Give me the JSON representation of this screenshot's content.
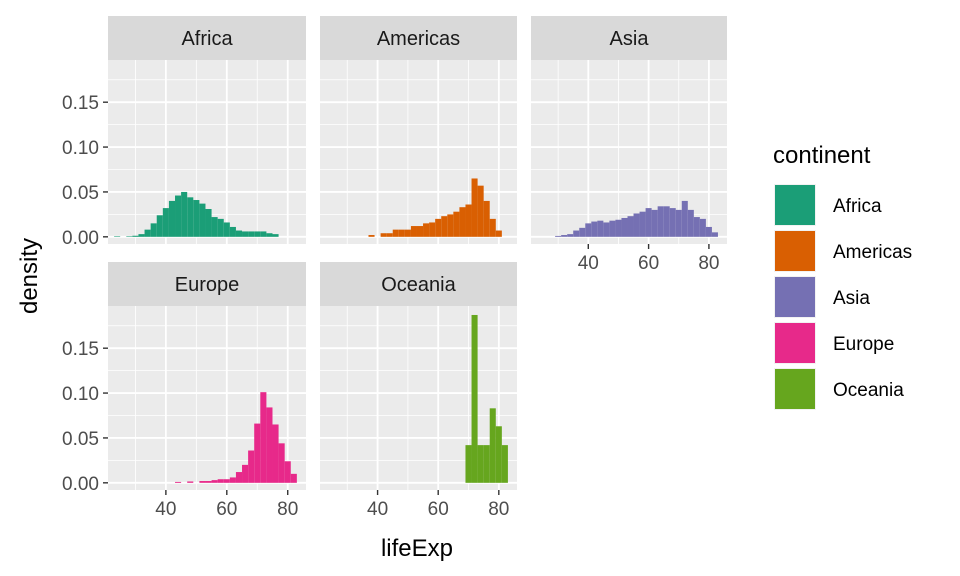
{
  "chart_data": {
    "type": "histogram-facet",
    "xlabel": "lifeExp",
    "ylabel": "density",
    "xlim": [
      21,
      86
    ],
    "ylim": [
      -0.008,
      0.197
    ],
    "x_ticks": [
      40,
      60,
      80
    ],
    "y_ticks": [
      0.0,
      0.05,
      0.1,
      0.15
    ],
    "y_tick_labels": [
      "0.00",
      "0.05",
      "0.10",
      "0.15"
    ],
    "bin_width": 2,
    "legend": {
      "title": "continent",
      "position": "right",
      "entries": [
        {
          "label": "Africa",
          "color": "#1B9E77"
        },
        {
          "label": "Americas",
          "color": "#D95F02"
        },
        {
          "label": "Asia",
          "color": "#7570B3"
        },
        {
          "label": "Europe",
          "color": "#E7298A"
        },
        {
          "label": "Oceania",
          "color": "#66A61E"
        }
      ]
    },
    "panels": [
      {
        "title": "Africa",
        "color": "#1B9E77",
        "bars": [
          {
            "x0": 23,
            "x1": 25,
            "y": 0.0006
          },
          {
            "x0": 27,
            "x1": 29,
            "y": 0.0006
          },
          {
            "x0": 29,
            "x1": 31,
            "y": 0.0012
          },
          {
            "x0": 31,
            "x1": 33,
            "y": 0.003
          },
          {
            "x0": 33,
            "x1": 35,
            "y": 0.008
          },
          {
            "x0": 35,
            "x1": 37,
            "y": 0.015
          },
          {
            "x0": 37,
            "x1": 39,
            "y": 0.024
          },
          {
            "x0": 39,
            "x1": 41,
            "y": 0.032
          },
          {
            "x0": 41,
            "x1": 43,
            "y": 0.04
          },
          {
            "x0": 43,
            "x1": 45,
            "y": 0.046
          },
          {
            "x0": 45,
            "x1": 47,
            "y": 0.05
          },
          {
            "x0": 47,
            "x1": 49,
            "y": 0.044
          },
          {
            "x0": 49,
            "x1": 51,
            "y": 0.041
          },
          {
            "x0": 51,
            "x1": 53,
            "y": 0.037
          },
          {
            "x0": 53,
            "x1": 55,
            "y": 0.031
          },
          {
            "x0": 55,
            "x1": 57,
            "y": 0.022
          },
          {
            "x0": 57,
            "x1": 59,
            "y": 0.02
          },
          {
            "x0": 59,
            "x1": 61,
            "y": 0.016
          },
          {
            "x0": 61,
            "x1": 63,
            "y": 0.011
          },
          {
            "x0": 63,
            "x1": 65,
            "y": 0.007
          },
          {
            "x0": 65,
            "x1": 67,
            "y": 0.006
          },
          {
            "x0": 67,
            "x1": 69,
            "y": 0.006
          },
          {
            "x0": 69,
            "x1": 71,
            "y": 0.006
          },
          {
            "x0": 71,
            "x1": 73,
            "y": 0.006
          },
          {
            "x0": 73,
            "x1": 75,
            "y": 0.004
          },
          {
            "x0": 75,
            "x1": 77,
            "y": 0.003
          }
        ]
      },
      {
        "title": "Americas",
        "color": "#D95F02",
        "bars": [
          {
            "x0": 37,
            "x1": 39,
            "y": 0.002
          },
          {
            "x0": 41,
            "x1": 43,
            "y": 0.004
          },
          {
            "x0": 43,
            "x1": 45,
            "y": 0.004
          },
          {
            "x0": 45,
            "x1": 47,
            "y": 0.008
          },
          {
            "x0": 47,
            "x1": 49,
            "y": 0.008
          },
          {
            "x0": 49,
            "x1": 51,
            "y": 0.008
          },
          {
            "x0": 51,
            "x1": 53,
            "y": 0.012
          },
          {
            "x0": 53,
            "x1": 55,
            "y": 0.012
          },
          {
            "x0": 55,
            "x1": 57,
            "y": 0.015
          },
          {
            "x0": 57,
            "x1": 59,
            "y": 0.016
          },
          {
            "x0": 59,
            "x1": 61,
            "y": 0.02
          },
          {
            "x0": 61,
            "x1": 63,
            "y": 0.023
          },
          {
            "x0": 63,
            "x1": 65,
            "y": 0.025
          },
          {
            "x0": 65,
            "x1": 67,
            "y": 0.028
          },
          {
            "x0": 67,
            "x1": 69,
            "y": 0.033
          },
          {
            "x0": 69,
            "x1": 71,
            "y": 0.036
          },
          {
            "x0": 71,
            "x1": 73,
            "y": 0.065
          },
          {
            "x0": 73,
            "x1": 75,
            "y": 0.057
          },
          {
            "x0": 75,
            "x1": 77,
            "y": 0.04
          },
          {
            "x0": 77,
            "x1": 79,
            "y": 0.02
          },
          {
            "x0": 79,
            "x1": 81,
            "y": 0.007
          }
        ]
      },
      {
        "title": "Asia",
        "color": "#7570B3",
        "bars": [
          {
            "x0": 29,
            "x1": 31,
            "y": 0.001
          },
          {
            "x0": 31,
            "x1": 33,
            "y": 0.002
          },
          {
            "x0": 33,
            "x1": 35,
            "y": 0.003
          },
          {
            "x0": 35,
            "x1": 37,
            "y": 0.007
          },
          {
            "x0": 37,
            "x1": 39,
            "y": 0.01
          },
          {
            "x0": 39,
            "x1": 41,
            "y": 0.015
          },
          {
            "x0": 41,
            "x1": 43,
            "y": 0.017
          },
          {
            "x0": 43,
            "x1": 45,
            "y": 0.018
          },
          {
            "x0": 45,
            "x1": 47,
            "y": 0.016
          },
          {
            "x0": 47,
            "x1": 49,
            "y": 0.018
          },
          {
            "x0": 49,
            "x1": 51,
            "y": 0.019
          },
          {
            "x0": 51,
            "x1": 53,
            "y": 0.021
          },
          {
            "x0": 53,
            "x1": 55,
            "y": 0.023
          },
          {
            "x0": 55,
            "x1": 57,
            "y": 0.026
          },
          {
            "x0": 57,
            "x1": 59,
            "y": 0.028
          },
          {
            "x0": 59,
            "x1": 61,
            "y": 0.032
          },
          {
            "x0": 61,
            "x1": 63,
            "y": 0.03
          },
          {
            "x0": 63,
            "x1": 65,
            "y": 0.034
          },
          {
            "x0": 65,
            "x1": 67,
            "y": 0.034
          },
          {
            "x0": 67,
            "x1": 69,
            "y": 0.032
          },
          {
            "x0": 69,
            "x1": 71,
            "y": 0.03
          },
          {
            "x0": 71,
            "x1": 73,
            "y": 0.04
          },
          {
            "x0": 73,
            "x1": 75,
            "y": 0.03
          },
          {
            "x0": 75,
            "x1": 77,
            "y": 0.022
          },
          {
            "x0": 77,
            "x1": 79,
            "y": 0.02
          },
          {
            "x0": 79,
            "x1": 81,
            "y": 0.011
          },
          {
            "x0": 81,
            "x1": 83,
            "y": 0.005
          }
        ]
      },
      {
        "title": "Europe",
        "color": "#E7298A",
        "bars": [
          {
            "x0": 43,
            "x1": 45,
            "y": 0.001
          },
          {
            "x0": 47,
            "x1": 49,
            "y": 0.0015
          },
          {
            "x0": 51,
            "x1": 53,
            "y": 0.002
          },
          {
            "x0": 53,
            "x1": 55,
            "y": 0.002
          },
          {
            "x0": 55,
            "x1": 57,
            "y": 0.003
          },
          {
            "x0": 57,
            "x1": 59,
            "y": 0.004
          },
          {
            "x0": 59,
            "x1": 61,
            "y": 0.004
          },
          {
            "x0": 61,
            "x1": 63,
            "y": 0.006
          },
          {
            "x0": 63,
            "x1": 65,
            "y": 0.012
          },
          {
            "x0": 65,
            "x1": 67,
            "y": 0.02
          },
          {
            "x0": 67,
            "x1": 69,
            "y": 0.036
          },
          {
            "x0": 69,
            "x1": 71,
            "y": 0.066
          },
          {
            "x0": 71,
            "x1": 73,
            "y": 0.101
          },
          {
            "x0": 73,
            "x1": 75,
            "y": 0.084
          },
          {
            "x0": 75,
            "x1": 77,
            "y": 0.065
          },
          {
            "x0": 77,
            "x1": 79,
            "y": 0.044
          },
          {
            "x0": 79,
            "x1": 81,
            "y": 0.024
          },
          {
            "x0": 81,
            "x1": 83,
            "y": 0.01
          }
        ]
      },
      {
        "title": "Oceania",
        "color": "#66A61E",
        "bars": [
          {
            "x0": 69,
            "x1": 71,
            "y": 0.042
          },
          {
            "x0": 71,
            "x1": 73,
            "y": 0.187
          },
          {
            "x0": 73,
            "x1": 75,
            "y": 0.042
          },
          {
            "x0": 75,
            "x1": 77,
            "y": 0.042
          },
          {
            "x0": 77,
            "x1": 79,
            "y": 0.083
          },
          {
            "x0": 79,
            "x1": 81,
            "y": 0.063
          },
          {
            "x0": 81,
            "x1": 83,
            "y": 0.042
          }
        ]
      }
    ]
  }
}
